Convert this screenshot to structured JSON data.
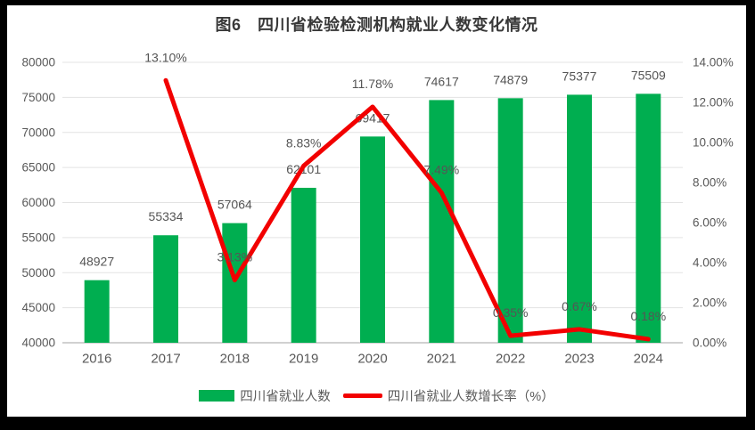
{
  "frame": {
    "outer_border_color": "#000000",
    "chart_background": "#FFFFFF"
  },
  "chart_data": {
    "type": "bar",
    "subtype": "bar-line-combo",
    "title": "图6　四川省检验检测机构就业人数变化情况",
    "categories": [
      "2016",
      "2017",
      "2018",
      "2019",
      "2020",
      "2021",
      "2022",
      "2023",
      "2024"
    ],
    "series": [
      {
        "name": "四川省就业人数",
        "type": "bar",
        "axis": "left",
        "color": "#00AE50",
        "values": [
          48927,
          55334,
          57064,
          62101,
          69417,
          74617,
          74879,
          75377,
          75509
        ],
        "labels": [
          "48927",
          "55334",
          "57064",
          "62101",
          "69417",
          "74617",
          "74879",
          "75377",
          "75509"
        ]
      },
      {
        "name": "四川省就业人数增长率（%）",
        "type": "line",
        "axis": "right",
        "color": "#F20000",
        "values": [
          null,
          13.1,
          3.13,
          8.83,
          11.78,
          7.49,
          0.35,
          0.67,
          0.18
        ],
        "labels": [
          "",
          "13.10%",
          "3.13%",
          "8.83%",
          "11.78%",
          "7.49%",
          "0.35%",
          "0.67%",
          "0.18%"
        ]
      }
    ],
    "left_axis": {
      "min": 40000,
      "max": 80000,
      "step": 5000,
      "ticks": [
        "40000",
        "45000",
        "50000",
        "55000",
        "60000",
        "65000",
        "70000",
        "75000",
        "80000"
      ]
    },
    "right_axis": {
      "min": 0,
      "max": 14,
      "step": 2,
      "ticks": [
        "0.00%",
        "2.00%",
        "4.00%",
        "6.00%",
        "8.00%",
        "10.00%",
        "12.00%",
        "14.00%"
      ]
    },
    "grid": "horizontal",
    "legend_position": "bottom"
  },
  "colors": {
    "gridline": "#E3E3E3",
    "axis_line": "#D1D1D1",
    "tick_label": "#595959",
    "data_label": "#555555",
    "title": "#383838"
  }
}
